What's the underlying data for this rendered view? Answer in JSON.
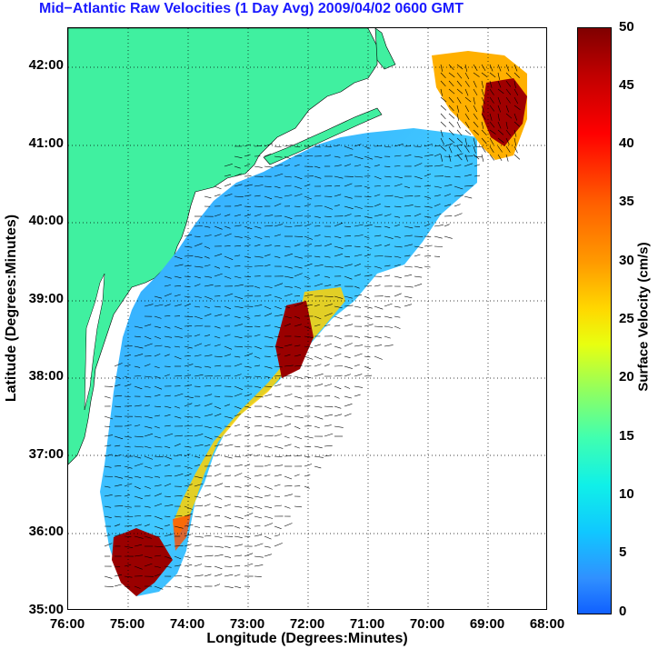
{
  "title": "Mid−Atlantic Raw Velocities (1 Day Avg) 2009/04/02 0600 GMT",
  "xlabel": "Longitude (Degrees:Minutes)",
  "ylabel": "Latitude (Degrees:Minutes)",
  "colorbar": {
    "label": "Surface Velocity (cm/s)",
    "min": 0,
    "max": 50,
    "ticks": [
      "0",
      "5",
      "10",
      "15",
      "20",
      "25",
      "30",
      "35",
      "40",
      "45",
      "50"
    ]
  },
  "map": {
    "x_ticks": [
      "76:00",
      "75:00",
      "74:00",
      "73:00",
      "72:00",
      "71:00",
      "70:00",
      "69:00",
      "68:00"
    ],
    "y_ticks": [
      "42:00",
      "41:00",
      "40:00",
      "39:00",
      "38:00",
      "37:00",
      "36:00",
      "35:00"
    ],
    "lon_range": [
      -76,
      -68
    ],
    "lat_range": [
      35,
      42.5
    ],
    "colors": {
      "land": "#40f0a0",
      "ocean": "#ffffff",
      "grid": "#000000",
      "low_speed": "#3080ff",
      "high_speed": "#900000"
    }
  }
}
